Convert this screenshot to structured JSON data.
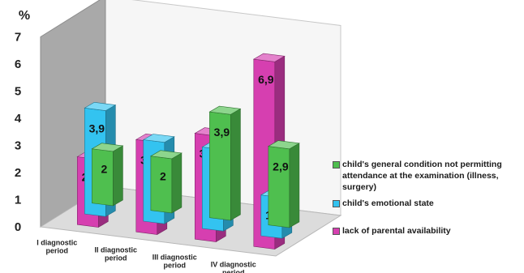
{
  "chart_data": {
    "type": "bar",
    "y_unit_label": "%",
    "categories": [
      [
        "I diagnostic",
        "period"
      ],
      [
        "II diagnostic",
        "period"
      ],
      [
        "III diagnostic",
        "period"
      ],
      [
        "IV diagnostic",
        "period"
      ]
    ],
    "yticks": [
      "0",
      "1",
      "2",
      "3",
      "4",
      "5",
      "6",
      "7"
    ],
    "ylim": [
      0,
      7
    ],
    "grid": false,
    "legend_position": "right",
    "series": [
      {
        "name": "child's general condition not permitting attendance at the examination (illness, surgery)",
        "color": "#4fbf4f",
        "values": [
          2,
          2,
          3.9,
          2.9
        ],
        "labels": [
          "2",
          "2",
          "3,9",
          "2,9"
        ]
      },
      {
        "name": "child's emotional state",
        "color": "#33c3f0",
        "values": [
          3.9,
          3,
          3,
          1.5
        ],
        "labels": [
          "3,9",
          "3",
          "3",
          "1,5"
        ]
      },
      {
        "name": "lack of parental availability",
        "color": "#d63fb0",
        "values": [
          2.5,
          3.4,
          3.9,
          6.9
        ],
        "labels": [
          "2,5",
          "3,4",
          "3,9",
          "6,9"
        ]
      }
    ]
  }
}
